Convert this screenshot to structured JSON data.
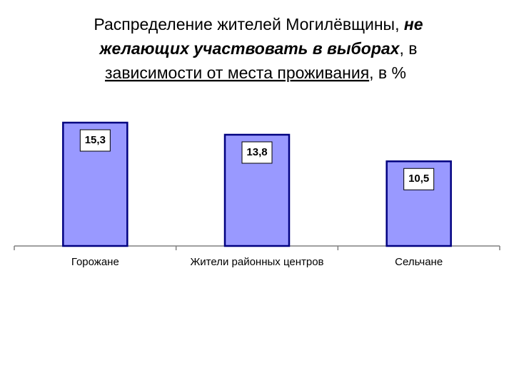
{
  "chart_data": {
    "type": "bar",
    "title": [
      "Распределение жителей Могилёвщины, ",
      "не",
      "желающих участвовать в выборах",
      ", в",
      "зависимости от места проживания",
      ", в %"
    ],
    "categories": [
      "Горожане",
      "Жители районных центров",
      "Сельчане"
    ],
    "values": [
      15.3,
      13.8,
      10.5
    ],
    "value_labels": [
      "15,3",
      "13,8",
      "10,5"
    ],
    "color": "#9999ff"
  }
}
